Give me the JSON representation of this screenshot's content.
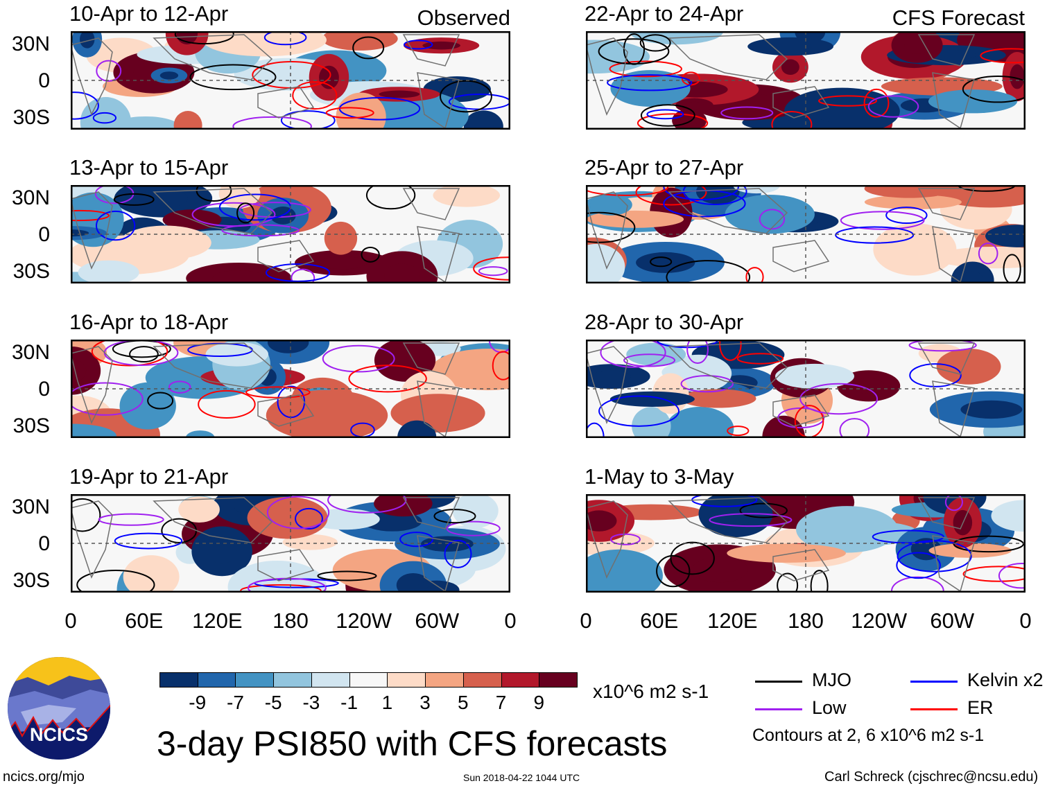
{
  "left_header": "Observed",
  "right_header": "CFS Forecast",
  "lat_labels": [
    "30N",
    "0",
    "30S"
  ],
  "lon_labels": [
    "0",
    "60E",
    "120E",
    "180",
    "120W",
    "60W",
    "0"
  ],
  "panels_left": [
    {
      "title": "10-Apr to 12-Apr"
    },
    {
      "title": "13-Apr to 15-Apr"
    },
    {
      "title": "16-Apr to 18-Apr"
    },
    {
      "title": "19-Apr to 21-Apr"
    }
  ],
  "panels_right": [
    {
      "title": "22-Apr to 24-Apr"
    },
    {
      "title": "25-Apr to 27-Apr"
    },
    {
      "title": "28-Apr to 30-Apr"
    },
    {
      "title": "1-May to 3-May"
    }
  ],
  "colorbar": {
    "colors": [
      "#08306b",
      "#2166ac",
      "#4393c3",
      "#92c5de",
      "#d1e5f0",
      "#f7f7f7",
      "#fddbc7",
      "#f4a582",
      "#d6604d",
      "#b2182b",
      "#67001f"
    ],
    "labels": [
      "-9",
      "-7",
      "-5",
      "-3",
      "-1",
      "1",
      "3",
      "5",
      "7",
      "9"
    ],
    "units": "x10^6 m2 s-1"
  },
  "legend": [
    {
      "label": "MJO",
      "color": "#000000"
    },
    {
      "label": "Kelvin x2",
      "color": "#0000ff"
    },
    {
      "label": "Low",
      "color": "#a020f0"
    },
    {
      "label": "ER",
      "color": "#ff0000"
    }
  ],
  "contour_note": "Contours at 2, 6 x10^6 m2 s-1",
  "title": "3-day PSI850 with CFS forecasts",
  "logo_text": "NCICS",
  "footer_left": "ncics.org/mjo",
  "footer_center": "Sun 2018-04-22 1044 UTC",
  "footer_right": "Carl Schreck (cjschrec@ncsu.edu)"
}
